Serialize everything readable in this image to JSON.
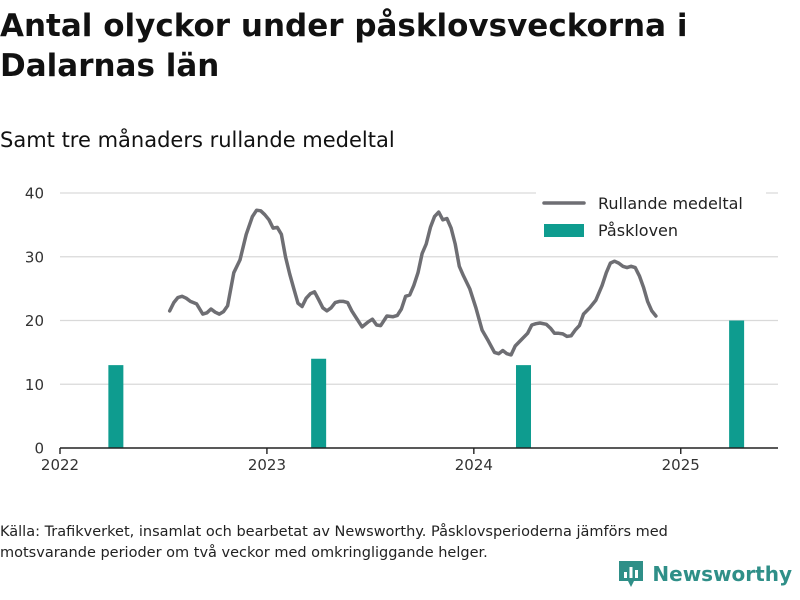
{
  "title": "Antal olyckor under påsklovsveckorna i Dalarnas län",
  "subtitle": "Samt tre månaders rullande medeltal",
  "source": "Källa: Trafikverket, insamlat och bearbetat av Newsworthy. Påsklovsperioderna jämförs med motsvarande perioder om två veckor med omkringliggande helger.",
  "brand": "Newsworthy",
  "colors": {
    "line": "#6e6e73",
    "bar": "#0e9c8f",
    "grid": "#d9d9d9",
    "axis": "#222222",
    "brand": "#2f8f88"
  },
  "chart_data": {
    "type": "line",
    "xlim": [
      2022.0,
      2025.47
    ],
    "ylim": [
      0,
      40
    ],
    "yticks": [
      0,
      10,
      20,
      30,
      40
    ],
    "xticks": [
      {
        "value": 2022,
        "label": "2022"
      },
      {
        "value": 2023,
        "label": "2023"
      },
      {
        "value": 2024,
        "label": "2024"
      },
      {
        "value": 2025,
        "label": "2025"
      }
    ],
    "grid": true,
    "legend_position": "top-right",
    "series": [
      {
        "name": "Rullande medeltal",
        "type": "line",
        "points": [
          [
            2022.53,
            21.5
          ],
          [
            2022.55,
            22.8
          ],
          [
            2022.57,
            23.6
          ],
          [
            2022.59,
            23.8
          ],
          [
            2022.61,
            23.5
          ],
          [
            2022.63,
            23.0
          ],
          [
            2022.66,
            22.6
          ],
          [
            2022.69,
            21.0
          ],
          [
            2022.71,
            21.2
          ],
          [
            2022.73,
            21.8
          ],
          [
            2022.75,
            21.3
          ],
          [
            2022.77,
            21.0
          ],
          [
            2022.79,
            21.4
          ],
          [
            2022.81,
            22.3
          ],
          [
            2022.84,
            27.5
          ],
          [
            2022.87,
            29.5
          ],
          [
            2022.9,
            33.5
          ],
          [
            2022.93,
            36.3
          ],
          [
            2022.95,
            37.3
          ],
          [
            2022.97,
            37.2
          ],
          [
            2022.99,
            36.6
          ],
          [
            2023.01,
            35.8
          ],
          [
            2023.03,
            34.5
          ],
          [
            2023.05,
            34.6
          ],
          [
            2023.07,
            33.5
          ],
          [
            2023.09,
            30.0
          ],
          [
            2023.11,
            27.3
          ],
          [
            2023.13,
            25.0
          ],
          [
            2023.15,
            22.7
          ],
          [
            2023.17,
            22.2
          ],
          [
            2023.19,
            23.5
          ],
          [
            2023.21,
            24.2
          ],
          [
            2023.23,
            24.5
          ],
          [
            2023.25,
            23.3
          ],
          [
            2023.27,
            22.0
          ],
          [
            2023.29,
            21.5
          ],
          [
            2023.31,
            22.0
          ],
          [
            2023.33,
            22.8
          ],
          [
            2023.35,
            23.0
          ],
          [
            2023.37,
            23.0
          ],
          [
            2023.39,
            22.8
          ],
          [
            2023.41,
            21.5
          ],
          [
            2023.43,
            20.5
          ],
          [
            2023.46,
            19.0
          ],
          [
            2023.49,
            19.8
          ],
          [
            2023.51,
            20.2
          ],
          [
            2023.53,
            19.3
          ],
          [
            2023.55,
            19.2
          ],
          [
            2023.58,
            20.7
          ],
          [
            2023.61,
            20.6
          ],
          [
            2023.63,
            20.8
          ],
          [
            2023.65,
            21.8
          ],
          [
            2023.67,
            23.8
          ],
          [
            2023.69,
            24.0
          ],
          [
            2023.71,
            25.5
          ],
          [
            2023.73,
            27.5
          ],
          [
            2023.75,
            30.5
          ],
          [
            2023.77,
            32.0
          ],
          [
            2023.79,
            34.6
          ],
          [
            2023.81,
            36.3
          ],
          [
            2023.83,
            37.0
          ],
          [
            2023.85,
            35.8
          ],
          [
            2023.87,
            36.0
          ],
          [
            2023.89,
            34.5
          ],
          [
            2023.91,
            32.0
          ],
          [
            2023.93,
            28.5
          ],
          [
            2023.95,
            27.0
          ],
          [
            2023.98,
            25.0
          ],
          [
            2024.01,
            22.0
          ],
          [
            2024.04,
            18.5
          ],
          [
            2024.07,
            16.8
          ],
          [
            2024.1,
            15.0
          ],
          [
            2024.12,
            14.8
          ],
          [
            2024.14,
            15.3
          ],
          [
            2024.16,
            14.8
          ],
          [
            2024.18,
            14.6
          ],
          [
            2024.2,
            16.0
          ],
          [
            2024.23,
            17.0
          ],
          [
            2024.26,
            18.0
          ],
          [
            2024.28,
            19.3
          ],
          [
            2024.3,
            19.5
          ],
          [
            2024.32,
            19.6
          ],
          [
            2024.35,
            19.4
          ],
          [
            2024.37,
            18.8
          ],
          [
            2024.39,
            18.0
          ],
          [
            2024.41,
            18.0
          ],
          [
            2024.43,
            17.9
          ],
          [
            2024.45,
            17.5
          ],
          [
            2024.47,
            17.6
          ],
          [
            2024.49,
            18.5
          ],
          [
            2024.51,
            19.2
          ],
          [
            2024.53,
            21.0
          ],
          [
            2024.56,
            22.0
          ],
          [
            2024.59,
            23.2
          ],
          [
            2024.62,
            25.5
          ],
          [
            2024.64,
            27.5
          ],
          [
            2024.66,
            29.0
          ],
          [
            2024.68,
            29.3
          ],
          [
            2024.7,
            29.0
          ],
          [
            2024.72,
            28.5
          ],
          [
            2024.74,
            28.3
          ],
          [
            2024.76,
            28.5
          ],
          [
            2024.78,
            28.3
          ],
          [
            2024.8,
            27.0
          ],
          [
            2024.82,
            25.2
          ],
          [
            2024.84,
            23.0
          ],
          [
            2024.86,
            21.5
          ],
          [
            2024.88,
            20.7
          ]
        ]
      },
      {
        "name": "Påskloven",
        "type": "bar",
        "points": [
          [
            2022.27,
            13
          ],
          [
            2023.25,
            14
          ],
          [
            2024.24,
            13
          ],
          [
            2025.27,
            20
          ]
        ]
      }
    ]
  }
}
